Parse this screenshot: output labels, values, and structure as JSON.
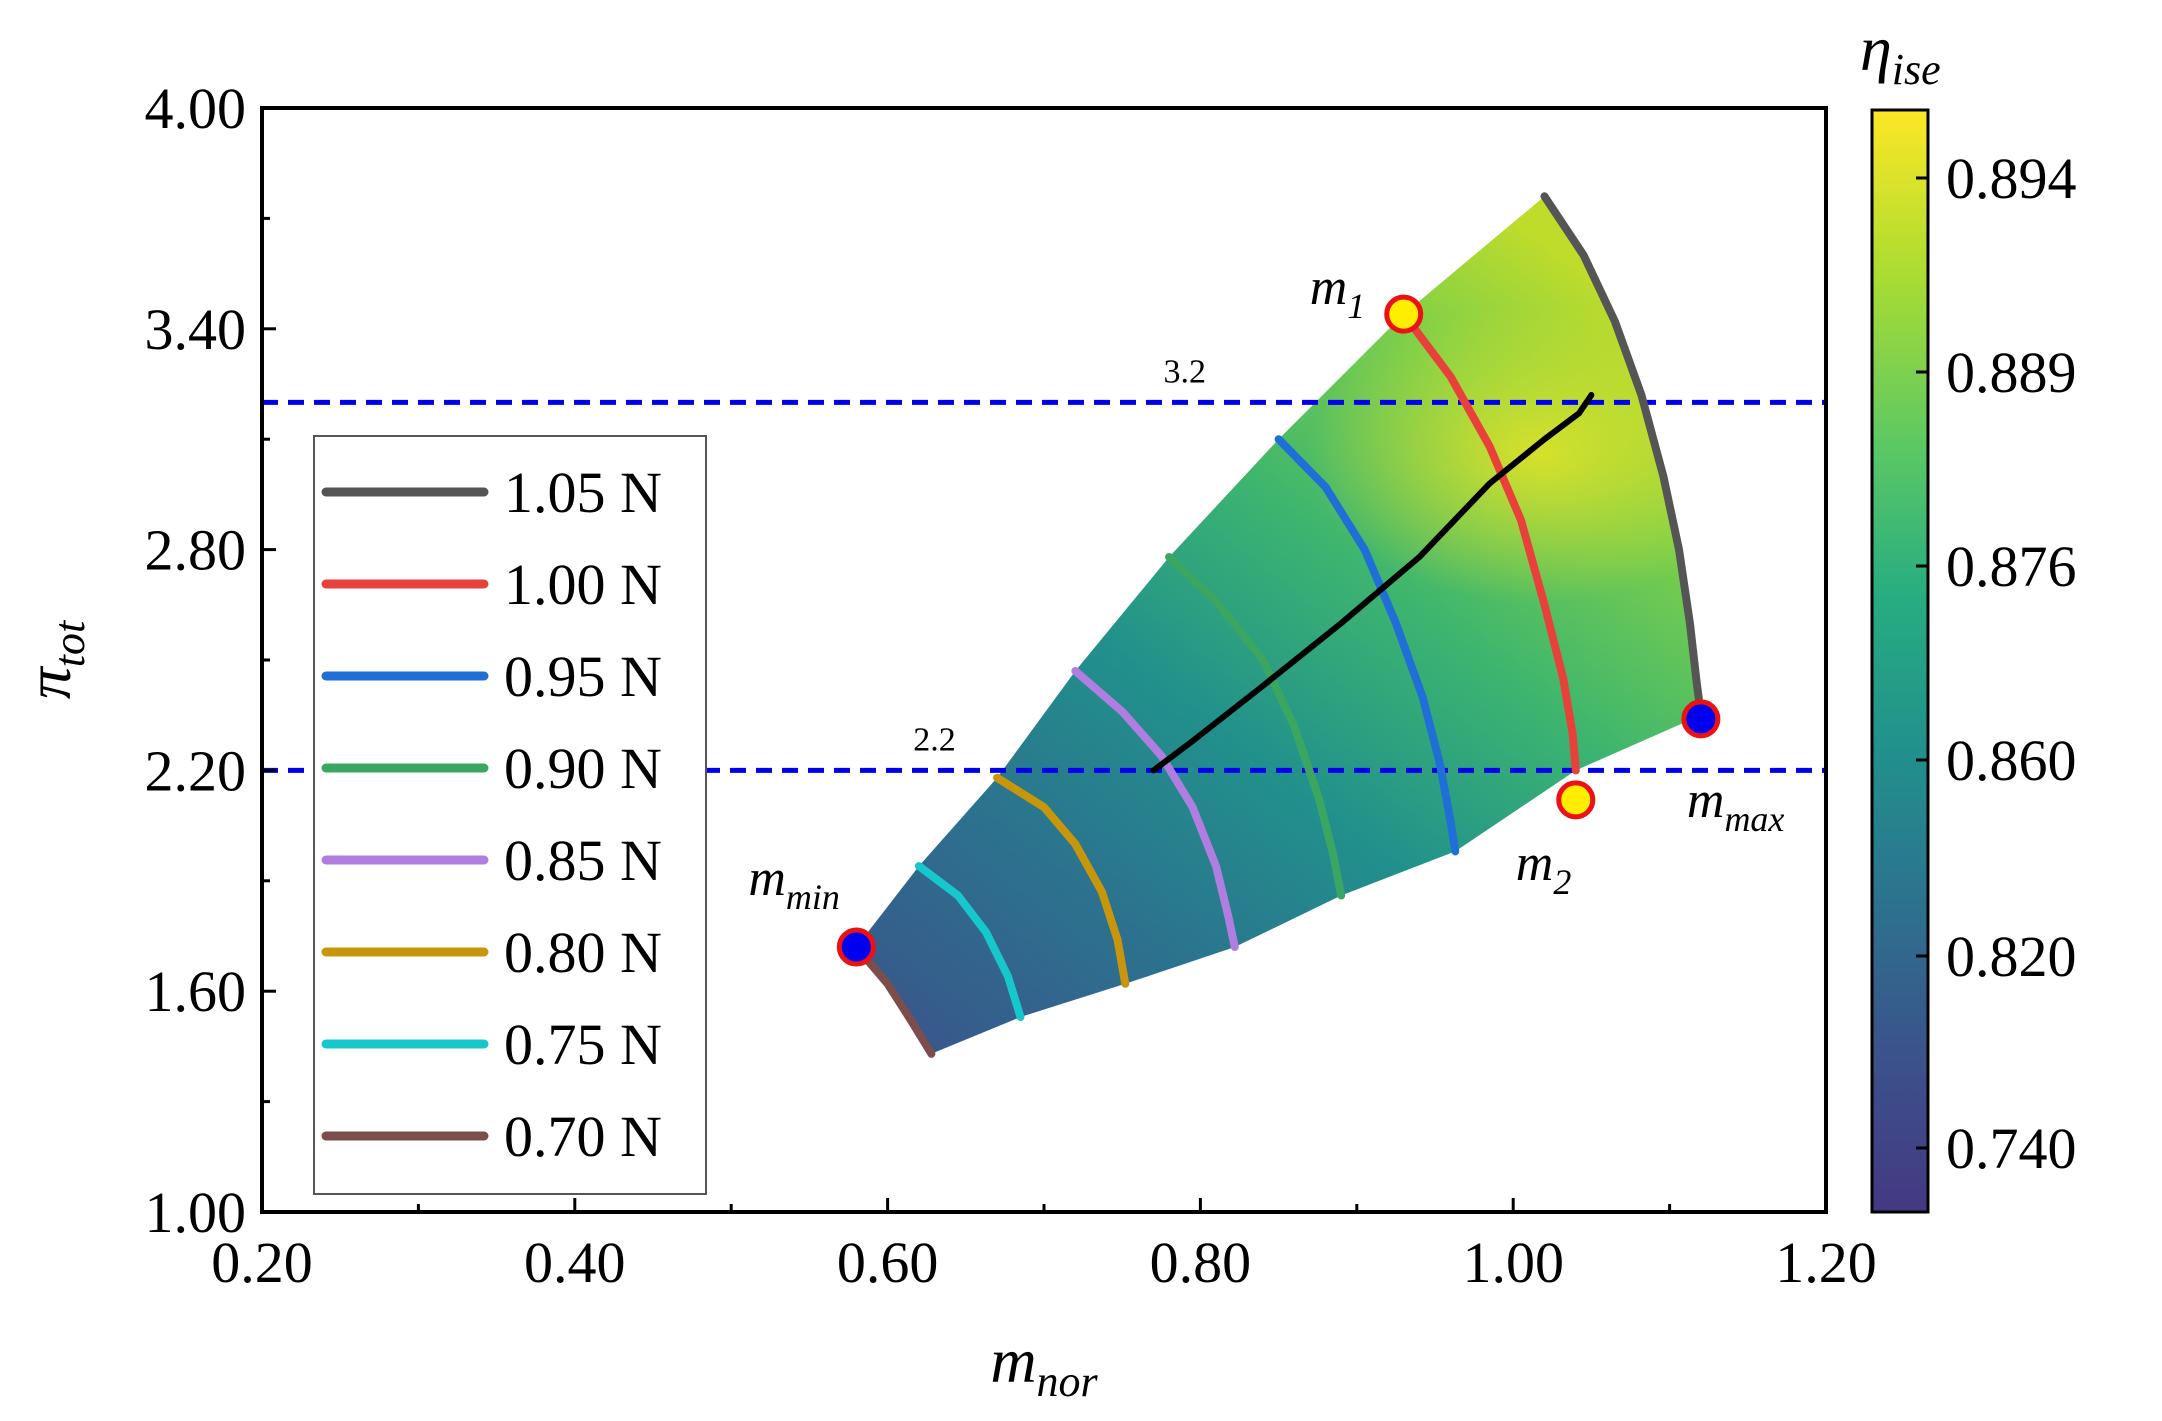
{
  "chart_data": {
    "type": "contour",
    "title": "",
    "xlabel": {
      "base": "m",
      "sub": "nor"
    },
    "ylabel": {
      "base": "π",
      "sub": "tot"
    },
    "xlim": [
      0.2,
      1.2
    ],
    "ylim": [
      1.0,
      4.0
    ],
    "xticks": [
      "0.20",
      "0.40",
      "0.60",
      "0.80",
      "1.00",
      "1.20"
    ],
    "yticks": [
      "1.00",
      "1.60",
      "2.20",
      "2.80",
      "3.40",
      "4.00"
    ],
    "colorbar": {
      "label": {
        "base": "η",
        "sub": "ise"
      },
      "ticks": [
        "0.740",
        "0.820",
        "0.860",
        "0.876",
        "0.889",
        "0.894"
      ],
      "colors": [
        "#443983",
        "#3b528b",
        "#2c728e",
        "#21918c",
        "#27ad81",
        "#5ec962",
        "#aadc32",
        "#fde725"
      ]
    },
    "reference_lines": [
      {
        "y": 3.2,
        "label": "3.2",
        "color": "#0000ee"
      },
      {
        "y": 2.2,
        "label": "2.2",
        "color": "#0000ee"
      }
    ],
    "series": [
      {
        "name": "1.05 N",
        "color": "#555555",
        "x": [
          1.02,
          1.045,
          1.065,
          1.082,
          1.096,
          1.106,
          1.113,
          1.117,
          1.12
        ],
        "y": [
          3.76,
          3.6,
          3.42,
          3.22,
          3.0,
          2.8,
          2.6,
          2.45,
          2.35
        ]
      },
      {
        "name": "1.00 N",
        "color": "#e8413c",
        "x": [
          0.93,
          0.96,
          0.985,
          1.005,
          1.02,
          1.032,
          1.038,
          1.04
        ],
        "y": [
          3.44,
          3.27,
          3.08,
          2.88,
          2.65,
          2.45,
          2.3,
          2.2
        ]
      },
      {
        "name": "0.95 N",
        "color": "#1f6fd6",
        "x": [
          0.85,
          0.88,
          0.905,
          0.925,
          0.942,
          0.953,
          0.96,
          0.963
        ],
        "y": [
          3.1,
          2.97,
          2.8,
          2.6,
          2.4,
          2.22,
          2.06,
          1.98
        ]
      },
      {
        "name": "0.90 N",
        "color": "#3aa661",
        "x": [
          0.78,
          0.81,
          0.84,
          0.86,
          0.876,
          0.885,
          0.89
        ],
        "y": [
          2.78,
          2.66,
          2.5,
          2.32,
          2.12,
          1.97,
          1.86
        ]
      },
      {
        "name": "0.85 N",
        "color": "#b07ee0",
        "x": [
          0.72,
          0.75,
          0.775,
          0.795,
          0.81,
          0.818,
          0.822
        ],
        "y": [
          2.47,
          2.36,
          2.24,
          2.1,
          1.94,
          1.8,
          1.72
        ]
      },
      {
        "name": "0.80 N",
        "color": "#c8960a",
        "x": [
          0.67,
          0.7,
          0.72,
          0.737,
          0.747,
          0.752
        ],
        "y": [
          2.18,
          2.1,
          2.0,
          1.87,
          1.74,
          1.62
        ]
      },
      {
        "name": "0.75 N",
        "color": "#16c7cc",
        "x": [
          0.62,
          0.645,
          0.663,
          0.677,
          0.685
        ],
        "y": [
          1.94,
          1.86,
          1.76,
          1.64,
          1.53
        ]
      },
      {
        "name": "0.70 N",
        "color": "#7b4e4c",
        "x": [
          0.58,
          0.6,
          0.615,
          0.628
        ],
        "y": [
          1.72,
          1.62,
          1.52,
          1.43
        ]
      }
    ],
    "operating_line": {
      "color": "#000000",
      "x": [
        0.77,
        0.795,
        0.84,
        0.89,
        0.94,
        0.985,
        1.02,
        1.042,
        1.05
      ],
      "y": [
        2.2,
        2.28,
        2.43,
        2.6,
        2.78,
        2.98,
        3.1,
        3.17,
        3.22
      ]
    },
    "points": [
      {
        "label": "m",
        "sub": "1",
        "x": 0.93,
        "y": 3.44,
        "fill": "#ffee00",
        "edge": "#ee1111"
      },
      {
        "label": "m",
        "sub": "2",
        "x": 1.04,
        "y": 2.12,
        "fill": "#ffee00",
        "edge": "#ee1111"
      },
      {
        "label": "m",
        "sub": "max",
        "x": 1.12,
        "y": 2.34,
        "fill": "#0000ee",
        "edge": "#ee1111"
      },
      {
        "label": "m",
        "sub": "min",
        "x": 0.58,
        "y": 1.72,
        "fill": "#0000ee",
        "edge": "#ee1111"
      }
    ]
  }
}
